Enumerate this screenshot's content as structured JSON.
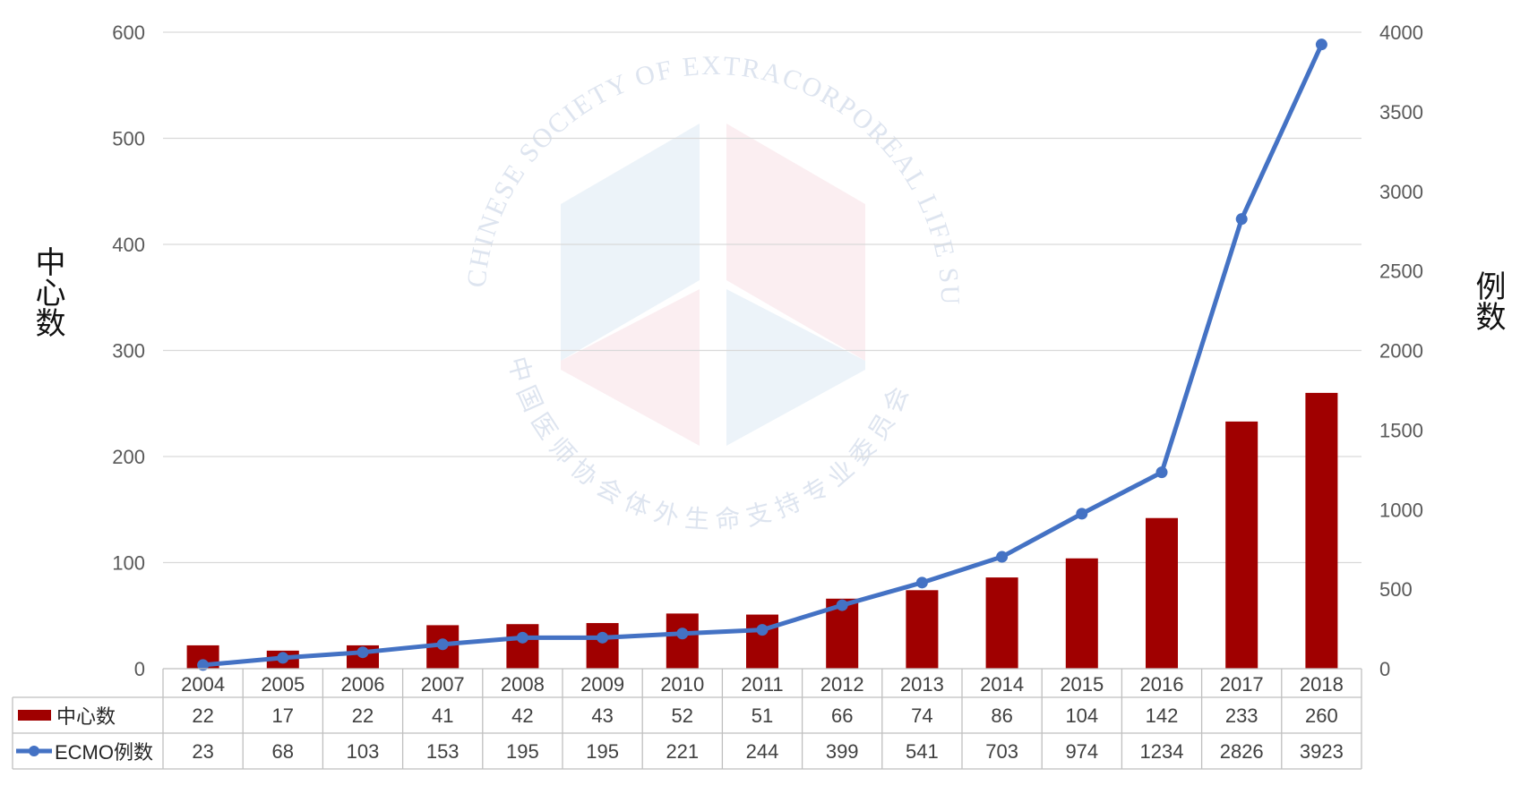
{
  "chart_data": {
    "type": "bar",
    "title": "",
    "categories": [
      "2004",
      "2005",
      "2006",
      "2007",
      "2008",
      "2009",
      "2010",
      "2011",
      "2012",
      "2013",
      "2014",
      "2015",
      "2016",
      "2017",
      "2018"
    ],
    "series": [
      {
        "name": "中心数",
        "type": "bar",
        "axis": "left",
        "color": "#A00000",
        "values": [
          22,
          17,
          22,
          41,
          42,
          43,
          52,
          51,
          66,
          74,
          86,
          104,
          142,
          233,
          260
        ]
      },
      {
        "name": "ECMO例数",
        "type": "line",
        "axis": "right",
        "color": "#4472C4",
        "values": [
          23,
          68,
          103,
          153,
          195,
          195,
          221,
          244,
          399,
          541,
          703,
          974,
          1234,
          2826,
          3923
        ]
      }
    ],
    "ylabel_left": "中心数",
    "ylabel_right": "例数",
    "ylim_left": [
      0,
      600
    ],
    "yticks_left": [
      "0",
      "100",
      "200",
      "300",
      "400",
      "500",
      "600"
    ],
    "ylim_right": [
      0,
      4000
    ],
    "yticks_right": [
      "0",
      "500",
      "1000",
      "1500",
      "2000",
      "2500",
      "3000",
      "3500",
      "4000"
    ],
    "grid": true,
    "legend": "data-table-left",
    "data_table": true
  },
  "watermark": {
    "text_outer": "CHINESE SOCIETY OF EXTRACORPOREAL LIFE SUPPORT",
    "text_inner": "中国医师协会体外生命支持专业委员会"
  }
}
